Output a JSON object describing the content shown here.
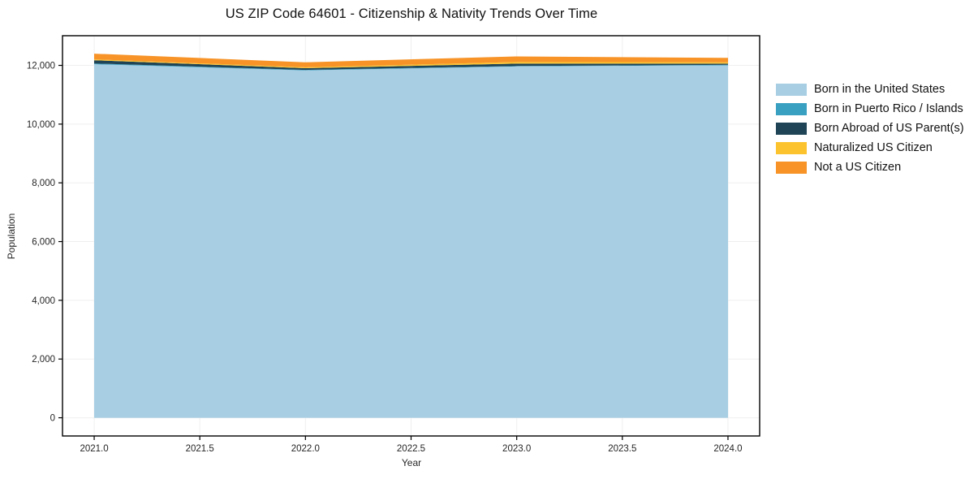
{
  "title": "US ZIP Code 64601 - Citizenship & Nativity Trends Over Time",
  "chart_data": {
    "type": "area",
    "stacked": true,
    "title": "US ZIP Code 64601 - Citizenship & Nativity Trends Over Time",
    "xlabel": "Year",
    "ylabel": "Population",
    "grid": true,
    "legend_position": "right-outside",
    "x": [
      2021,
      2022,
      2023,
      2024
    ],
    "series": [
      {
        "name": "Born in the United States",
        "color": "#a8cee3",
        "values": [
          12040,
          11830,
          11965,
          12000
        ]
      },
      {
        "name": "Born in Puerto Rico / Islands",
        "color": "#3aa0c1",
        "values": [
          25,
          15,
          15,
          20
        ]
      },
      {
        "name": "Born Abroad of US Parent(s)",
        "color": "#1f4456",
        "values": [
          110,
          60,
          80,
          40
        ]
      },
      {
        "name": "Naturalized US Citizen",
        "color": "#fcc32e",
        "values": [
          30,
          30,
          55,
          45
        ]
      },
      {
        "name": "Not a US Citizen",
        "color": "#f79327",
        "values": [
          195,
          170,
          190,
          150
        ]
      }
    ],
    "xlim": [
      2020.85,
      2024.15
    ],
    "ylim": [
      -620,
      13010
    ],
    "x_tick_values": [
      2021.0,
      2021.5,
      2022.0,
      2022.5,
      2023.0,
      2023.5,
      2024.0
    ],
    "x_tick_labels": [
      "2021.0",
      "2021.5",
      "2022.0",
      "2022.5",
      "2023.0",
      "2023.5",
      "2024.0"
    ],
    "y_tick_values": [
      0,
      2000,
      4000,
      6000,
      8000,
      10000,
      12000
    ],
    "y_tick_labels": [
      "0",
      "2,000",
      "4,000",
      "6,000",
      "8,000",
      "10,000",
      "12,000"
    ],
    "gridline_color": "#efefef",
    "spine_color": "#000000"
  }
}
